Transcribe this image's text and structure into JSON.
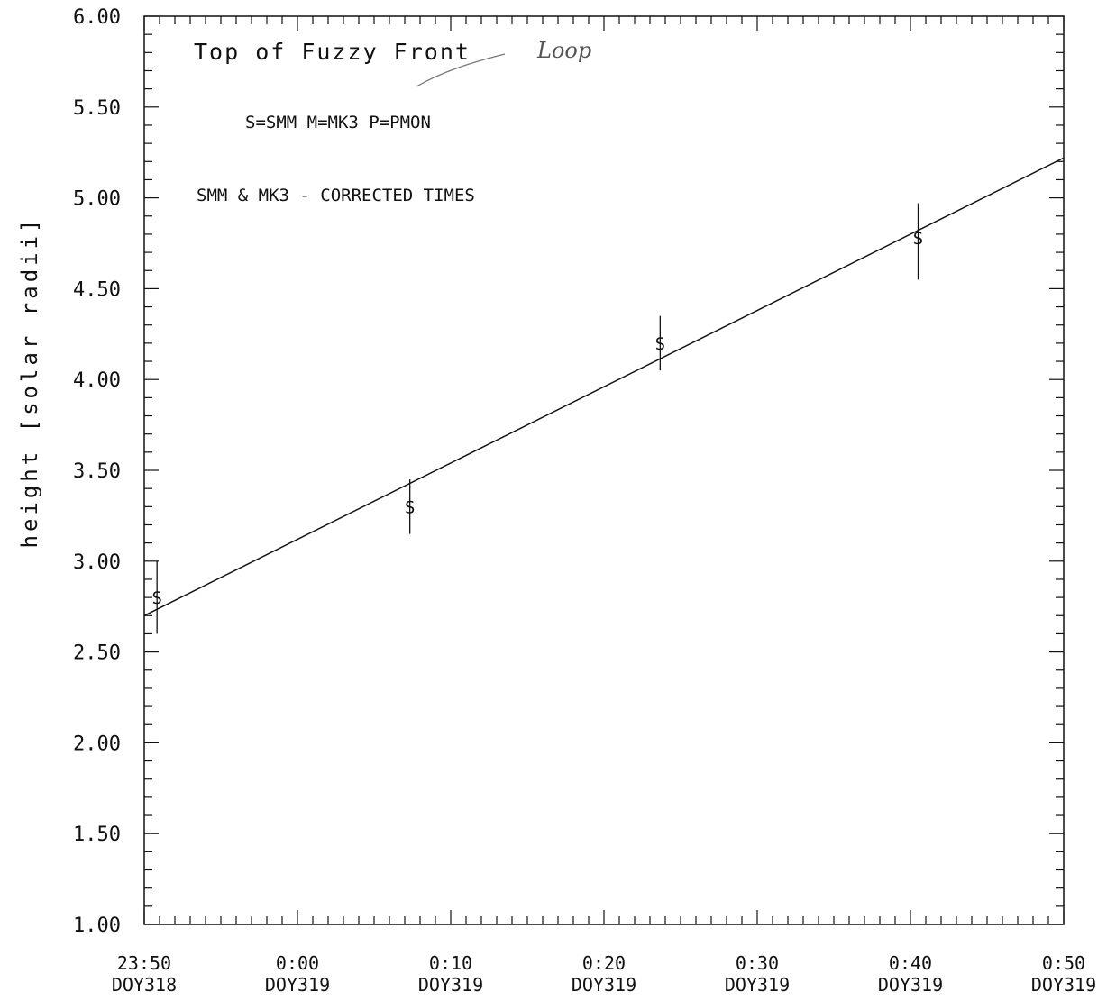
{
  "chart_data": {
    "type": "scatter",
    "title": "Top of Fuzzy Front",
    "title_handwritten_addition": "Loop",
    "legend_text": "S=SMM   M=MK3   P=PMON",
    "note": "SMM & MK3 - CORRECTED TIMES",
    "xlabel": "",
    "ylabel": "height [solar radii]",
    "ylim": [
      1.0,
      6.0
    ],
    "xlim": [
      "23:50 DOY318",
      "0:50 DOY319"
    ],
    "grid": false,
    "y_ticks": [
      "1.00",
      "1.50",
      "2.00",
      "2.50",
      "3.00",
      "3.50",
      "4.00",
      "4.50",
      "5.00",
      "5.50",
      "6.00"
    ],
    "x_ticks": [
      {
        "time": "23:50",
        "day": "DOY318"
      },
      {
        "time": "0:00",
        "day": "DOY319"
      },
      {
        "time": "0:10",
        "day": "DOY319"
      },
      {
        "time": "0:20",
        "day": "DOY319"
      },
      {
        "time": "0:30",
        "day": "DOY319"
      },
      {
        "time": "0:40",
        "day": "DOY319"
      },
      {
        "time": "0:50",
        "day": "DOY319"
      }
    ],
    "series": [
      {
        "marker": "S",
        "points": [
          {
            "x": "23:50:50 DOY318",
            "y": 2.8,
            "err_low": 2.6,
            "err_high": 3.0
          },
          {
            "x": "0:07:20 DOY319",
            "y": 3.3,
            "err_low": 3.15,
            "err_high": 3.45
          },
          {
            "x": "0:23:40 DOY319",
            "y": 4.2,
            "err_low": 4.05,
            "err_high": 4.35
          },
          {
            "x": "0:40:30 DOY319",
            "y": 4.78,
            "err_low": 4.55,
            "err_high": 4.97
          }
        ]
      }
    ],
    "fit_line": {
      "start": {
        "x": "23:50 DOY318",
        "y": 2.7
      },
      "end": {
        "x": "0:50 DOY319",
        "y": 5.22
      }
    }
  }
}
